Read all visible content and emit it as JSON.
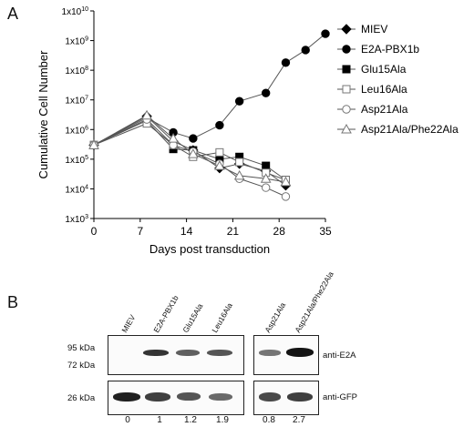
{
  "panels": {
    "a": "A",
    "b": "B"
  },
  "chart_data": {
    "type": "line",
    "ylabel": "Cumulative Cell Number",
    "xlabel": "Days post transduction",
    "yscale": "log",
    "ylim": [
      1000,
      10000000000
    ],
    "xlim": [
      0,
      35
    ],
    "xticks": [
      "0",
      "7",
      "14",
      "21",
      "28",
      "35"
    ],
    "yticks": [
      "1x10^3",
      "1x10^4",
      "1x10^5",
      "1x10^6",
      "1x10^7",
      "1x10^8",
      "1x10^9",
      "1x10^10"
    ],
    "legend_position": "right",
    "grid": false,
    "series": [
      {
        "name": "MIEV",
        "marker": "diamond-filled",
        "x": [
          0,
          8,
          12,
          15,
          19,
          22,
          26,
          29
        ],
        "y": [
          300000,
          2800000,
          400000,
          200000,
          50000,
          70000,
          40000,
          13000
        ]
      },
      {
        "name": "E2A-PBX1b",
        "marker": "circle-filled",
        "x": [
          0,
          8,
          12,
          15,
          19,
          22,
          26,
          29,
          32,
          35
        ],
        "y": [
          300000,
          2500000,
          800000,
          500000,
          1400000,
          9000000,
          17000000,
          180000000,
          480000000,
          1700000000
        ]
      },
      {
        "name": "Glu15Ala",
        "marker": "square-filled",
        "x": [
          0,
          8,
          12,
          15,
          19,
          22,
          26,
          29
        ],
        "y": [
          300000,
          2000000,
          220000,
          200000,
          100000,
          120000,
          60000,
          20000
        ]
      },
      {
        "name": "Leu16Ala",
        "marker": "square-open",
        "x": [
          0,
          8,
          12,
          15,
          19,
          22,
          26,
          29
        ],
        "y": [
          300000,
          1600000,
          300000,
          120000,
          170000,
          80000,
          35000,
          20000
        ]
      },
      {
        "name": "Asp21Ala",
        "marker": "circle-open",
        "x": [
          0,
          8,
          12,
          15,
          19,
          22,
          26,
          29
        ],
        "y": [
          300000,
          2200000,
          300000,
          180000,
          70000,
          22000,
          11000,
          5500
        ]
      },
      {
        "name": "Asp21Ala/Phe22Ala",
        "marker": "triangle-open",
        "x": [
          0,
          8,
          12,
          15,
          19,
          22,
          26,
          29
        ],
        "y": [
          300000,
          3000000,
          500000,
          150000,
          60000,
          28000,
          22000,
          17000
        ]
      }
    ]
  },
  "blot": {
    "lanes": [
      "MIEV",
      "E2A-PBX1b",
      "Glu15Ala",
      "Leu16Ala",
      "Asp21Ala",
      "Asp21Ala/Phe22Ala"
    ],
    "markers": [
      "95 kDa",
      "72 kDa",
      "26 kDa"
    ],
    "antibodies": [
      "anti-E2A",
      "anti-GFP"
    ],
    "quantification": [
      "0",
      "1",
      "1.2",
      "1.9",
      "0.8",
      "2.7"
    ],
    "e2a_band_intensity": [
      0,
      0.85,
      0.65,
      0.7,
      0.55,
      1.0
    ],
    "gfp_band_intensity": [
      0.95,
      0.8,
      0.7,
      0.6,
      0.75,
      0.8
    ]
  }
}
